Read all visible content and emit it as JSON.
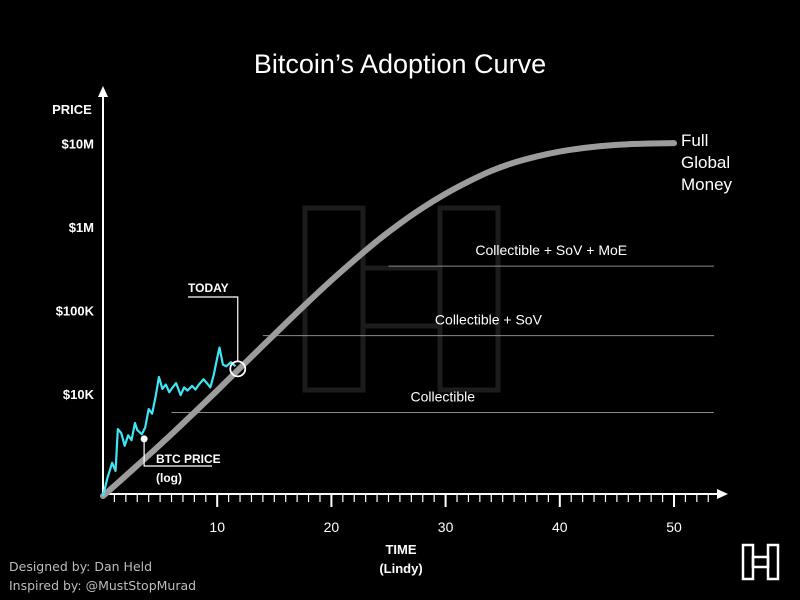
{
  "chart_data": {
    "type": "line",
    "title": "Bitcoin’s Adoption Curve",
    "ylabel": "PRICE",
    "xlabel_line1": "TIME",
    "xlabel_line2": "(Lindy)",
    "y_scale": "log",
    "y_ticks": [
      {
        "value": 10000,
        "label": "$10K"
      },
      {
        "value": 100000,
        "label": "$100K"
      },
      {
        "value": 1000000,
        "label": "$1M"
      },
      {
        "value": 10000000,
        "label": "$10M"
      }
    ],
    "x_ticks": [
      10,
      20,
      30,
      40,
      50
    ],
    "xlim": [
      0,
      53
    ],
    "ylim": [
      300,
      20000000
    ],
    "grid": false,
    "adoption_curve": {
      "end_label": [
        "Full",
        "Global",
        "Money"
      ],
      "x": [
        0,
        2,
        4,
        6,
        8,
        10,
        12,
        14,
        16,
        18,
        20,
        22,
        24,
        26,
        28,
        30,
        32,
        34,
        36,
        38,
        40,
        42,
        44,
        46,
        48,
        50
      ],
      "y": [
        600,
        1050,
        1850,
        3300,
        6000,
        11000,
        20500,
        38000,
        70000,
        128000,
        230000,
        400000,
        680000,
        1100000,
        1700000,
        2500000,
        3500000,
        4700000,
        5900000,
        7000000,
        8000000,
        8800000,
        9400000,
        9800000,
        10000000,
        10100000
      ]
    },
    "btc_price": {
      "label_line1": "BTC PRICE",
      "label_line2": "(log)",
      "color": "#3ee6f5",
      "x": [
        0,
        0.4,
        0.8,
        1.1,
        1.3,
        1.6,
        1.9,
        2.2,
        2.5,
        2.8,
        3.0,
        3.4,
        3.7,
        4.0,
        4.3,
        4.6,
        4.9,
        5.2,
        5.5,
        5.8,
        6.1,
        6.4,
        6.8,
        7.1,
        7.4,
        7.8,
        8.1,
        8.4,
        8.8,
        9.1,
        9.4,
        9.7,
        10.0,
        10.2,
        10.5,
        10.8,
        11.2,
        11.6
      ],
      "y": [
        600,
        1000,
        1500,
        1200,
        3800,
        3400,
        2400,
        3200,
        2800,
        4500,
        3700,
        3300,
        4000,
        6600,
        5800,
        9200,
        16000,
        11500,
        13000,
        10500,
        12000,
        13500,
        9700,
        12000,
        11000,
        12500,
        11300,
        13000,
        15000,
        13500,
        12000,
        17000,
        27000,
        36000,
        22500,
        21500,
        24000,
        21500
      ]
    },
    "today": {
      "label": "TODAY",
      "x": 11.8,
      "y": 20000
    },
    "levels": [
      {
        "label": "Collectible",
        "y": 6000,
        "x_start": 6
      },
      {
        "label": "Collectible + SoV",
        "y": 50000,
        "x_start": 14
      },
      {
        "label": "Collectible + SoV + MoE",
        "y": 340000,
        "x_start": 25
      }
    ]
  },
  "footer": {
    "designed_by": "Designed by: Dan Held",
    "inspired_by": "Inspired by: @MustStopMurad"
  }
}
